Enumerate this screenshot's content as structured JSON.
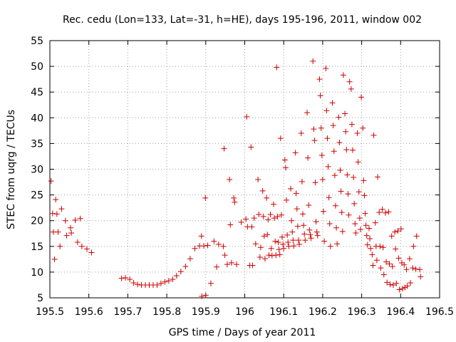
{
  "chart_data": {
    "type": "scatter",
    "title": "Rec. cedu (Lon=133, Lat=-31, h=HE), days 195-196, 2011, window 002",
    "xlabel": "GPS time / Days of year 2011",
    "ylabel": "STEC from uqrg / TECUs",
    "xlim": [
      195.5,
      196.5
    ],
    "ylim": [
      5,
      55
    ],
    "grid": true,
    "marker": "+",
    "colors": {
      "marker": "#cc0000",
      "grid": "#a0a0a0",
      "axis": "#000000"
    },
    "xticks": [
      "195.5",
      "195.6",
      "195.7",
      "195.8",
      "195.9",
      "196",
      "196.1",
      "196.2",
      "196.3",
      "196.4",
      "196.5"
    ],
    "yticks": [
      "5",
      "10",
      "15",
      "20",
      "25",
      "30",
      "35",
      "40",
      "45",
      "50",
      "55"
    ],
    "points": [
      [
        195.503,
        27.7
      ],
      [
        195.507,
        21.4
      ],
      [
        195.509,
        17.8
      ],
      [
        195.512,
        12.5
      ],
      [
        195.515,
        24.1
      ],
      [
        195.518,
        21.3
      ],
      [
        195.521,
        17.8
      ],
      [
        195.526,
        15.0
      ],
      [
        195.53,
        22.3
      ],
      [
        195.54,
        20.0
      ],
      [
        195.543,
        17.1
      ],
      [
        195.553,
        18.6
      ],
      [
        195.555,
        17.6
      ],
      [
        195.565,
        20.1
      ],
      [
        195.571,
        15.8
      ],
      [
        195.578,
        20.4
      ],
      [
        195.582,
        15.0
      ],
      [
        195.595,
        14.5
      ],
      [
        195.607,
        13.8
      ],
      [
        195.684,
        8.8
      ],
      [
        195.694,
        8.9
      ],
      [
        195.705,
        8.6
      ],
      [
        195.715,
        7.9
      ],
      [
        195.725,
        7.6
      ],
      [
        195.735,
        7.5
      ],
      [
        195.745,
        7.5
      ],
      [
        195.755,
        7.5
      ],
      [
        195.765,
        7.5
      ],
      [
        195.775,
        7.5
      ],
      [
        195.785,
        7.8
      ],
      [
        195.795,
        8.1
      ],
      [
        195.805,
        8.3
      ],
      [
        195.815,
        8.6
      ],
      [
        195.825,
        9.3
      ],
      [
        195.836,
        10.1
      ],
      [
        195.848,
        11.1
      ],
      [
        195.86,
        12.6
      ],
      [
        195.872,
        14.6
      ],
      [
        195.884,
        15.1
      ],
      [
        195.889,
        17.0
      ],
      [
        195.89,
        5.3
      ],
      [
        195.895,
        15.1
      ],
      [
        195.899,
        24.4
      ],
      [
        195.9,
        5.5
      ],
      [
        195.905,
        15.2
      ],
      [
        195.913,
        7.8
      ],
      [
        195.921,
        16.0
      ],
      [
        195.928,
        11.0
      ],
      [
        195.933,
        15.4
      ],
      [
        195.945,
        15.0
      ],
      [
        195.947,
        34.0
      ],
      [
        195.949,
        13.3
      ],
      [
        195.955,
        11.5
      ],
      [
        195.961,
        28.0
      ],
      [
        195.963,
        19.2
      ],
      [
        195.966,
        11.8
      ],
      [
        195.972,
        24.4
      ],
      [
        195.974,
        23.6
      ],
      [
        195.979,
        11.5
      ],
      [
        195.991,
        19.7
      ],
      [
        196.003,
        20.3
      ],
      [
        196.005,
        40.2
      ],
      [
        196.007,
        18.8
      ],
      [
        196.013,
        11.3
      ],
      [
        196.016,
        34.3
      ],
      [
        196.018,
        18.8
      ],
      [
        196.02,
        11.3
      ],
      [
        196.024,
        20.5
      ],
      [
        196.028,
        15.5
      ],
      [
        196.034,
        28.0
      ],
      [
        196.036,
        21.2
      ],
      [
        196.039,
        12.9
      ],
      [
        196.041,
        14.8
      ],
      [
        196.046,
        25.8
      ],
      [
        196.048,
        20.8
      ],
      [
        196.05,
        17.0
      ],
      [
        196.052,
        12.6
      ],
      [
        196.056,
        24.4
      ],
      [
        196.058,
        17.3
      ],
      [
        196.06,
        20.2
      ],
      [
        196.062,
        13.3
      ],
      [
        196.066,
        21.2
      ],
      [
        196.068,
        14.6
      ],
      [
        196.07,
        13.2
      ],
      [
        196.074,
        23.2
      ],
      [
        196.076,
        20.5
      ],
      [
        196.078,
        16.0
      ],
      [
        196.08,
        13.3
      ],
      [
        196.082,
        49.8
      ],
      [
        196.084,
        20.8
      ],
      [
        196.086,
        15.8
      ],
      [
        196.088,
        14.4
      ],
      [
        196.09,
        13.4
      ],
      [
        196.092,
        36.0
      ],
      [
        196.094,
        21.1
      ],
      [
        196.096,
        16.8
      ],
      [
        196.098,
        15.4
      ],
      [
        196.1,
        14.6
      ],
      [
        196.103,
        31.8
      ],
      [
        196.105,
        30.3
      ],
      [
        196.107,
        24.0
      ],
      [
        196.109,
        17.2
      ],
      [
        196.111,
        15.8
      ],
      [
        196.113,
        15.0
      ],
      [
        196.118,
        26.2
      ],
      [
        196.12,
        20.0
      ],
      [
        196.122,
        17.8
      ],
      [
        196.124,
        16.2
      ],
      [
        196.126,
        15.1
      ],
      [
        196.13,
        33.2
      ],
      [
        196.132,
        25.3
      ],
      [
        196.134,
        22.3
      ],
      [
        196.136,
        18.9
      ],
      [
        196.138,
        16.2
      ],
      [
        196.14,
        15.4
      ],
      [
        196.145,
        37.0
      ],
      [
        196.147,
        27.6
      ],
      [
        196.149,
        21.3
      ],
      [
        196.151,
        19.1
      ],
      [
        196.153,
        17.4
      ],
      [
        196.155,
        16.2
      ],
      [
        196.16,
        41.0
      ],
      [
        196.162,
        32.2
      ],
      [
        196.164,
        23.0
      ],
      [
        196.166,
        18.2
      ],
      [
        196.168,
        17.3
      ],
      [
        196.17,
        16.6
      ],
      [
        196.175,
        51.0
      ],
      [
        196.177,
        37.8
      ],
      [
        196.179,
        35.6
      ],
      [
        196.181,
        27.4
      ],
      [
        196.183,
        19.8
      ],
      [
        196.185,
        17.8
      ],
      [
        196.187,
        17.1
      ],
      [
        196.192,
        47.5
      ],
      [
        196.194,
        44.3
      ],
      [
        196.196,
        38.0
      ],
      [
        196.198,
        32.7
      ],
      [
        196.2,
        28.0
      ],
      [
        196.202,
        21.8
      ],
      [
        196.204,
        16.0
      ],
      [
        196.208,
        49.6
      ],
      [
        196.21,
        41.4
      ],
      [
        196.212,
        36.0
      ],
      [
        196.214,
        30.5
      ],
      [
        196.216,
        24.5
      ],
      [
        196.218,
        19.4
      ],
      [
        196.22,
        15.0
      ],
      [
        196.225,
        42.9
      ],
      [
        196.227,
        38.5
      ],
      [
        196.229,
        33.5
      ],
      [
        196.231,
        28.8
      ],
      [
        196.233,
        22.9
      ],
      [
        196.235,
        18.6
      ],
      [
        196.237,
        15.5
      ],
      [
        196.241,
        40.1
      ],
      [
        196.243,
        35.2
      ],
      [
        196.245,
        29.8
      ],
      [
        196.247,
        25.7
      ],
      [
        196.249,
        21.6
      ],
      [
        196.251,
        17.9
      ],
      [
        196.253,
        48.3
      ],
      [
        196.257,
        40.8
      ],
      [
        196.259,
        37.3
      ],
      [
        196.261,
        33.8
      ],
      [
        196.263,
        28.9
      ],
      [
        196.265,
        25.2
      ],
      [
        196.267,
        21.1
      ],
      [
        196.269,
        47.0
      ],
      [
        196.273,
        45.6
      ],
      [
        196.275,
        38.7
      ],
      [
        196.277,
        33.7
      ],
      [
        196.279,
        28.4
      ],
      [
        196.281,
        23.3
      ],
      [
        196.283,
        19.4
      ],
      [
        196.285,
        17.6
      ],
      [
        196.289,
        37.0
      ],
      [
        196.291,
        31.4
      ],
      [
        196.293,
        25.6
      ],
      [
        196.295,
        20.5
      ],
      [
        196.297,
        18.3
      ],
      [
        196.299,
        44.0
      ],
      [
        196.303,
        38.0
      ],
      [
        196.305,
        27.8
      ],
      [
        196.307,
        24.9
      ],
      [
        196.309,
        21.4
      ],
      [
        196.311,
        19.1
      ],
      [
        196.313,
        17.1
      ],
      [
        196.315,
        15.3
      ],
      [
        196.319,
        18.5
      ],
      [
        196.321,
        16.5
      ],
      [
        196.323,
        14.6
      ],
      [
        196.327,
        13.4
      ],
      [
        196.329,
        11.3
      ],
      [
        196.331,
        36.6
      ],
      [
        196.335,
        19.6
      ],
      [
        196.337,
        15.0
      ],
      [
        196.339,
        12.3
      ],
      [
        196.341,
        28.5
      ],
      [
        196.345,
        21.6
      ],
      [
        196.347,
        15.0
      ],
      [
        196.349,
        10.8
      ],
      [
        196.353,
        22.2
      ],
      [
        196.355,
        14.8
      ],
      [
        196.357,
        9.5
      ],
      [
        196.361,
        21.5
      ],
      [
        196.363,
        12.0
      ],
      [
        196.365,
        8.0
      ],
      [
        196.369,
        21.7
      ],
      [
        196.371,
        11.6
      ],
      [
        196.373,
        7.6
      ],
      [
        196.377,
        17.0
      ],
      [
        196.379,
        11.1
      ],
      [
        196.381,
        7.5
      ],
      [
        196.385,
        17.8
      ],
      [
        196.387,
        14.5
      ],
      [
        196.389,
        7.8
      ],
      [
        196.393,
        18.0
      ],
      [
        196.395,
        12.7
      ],
      [
        196.397,
        6.6
      ],
      [
        196.401,
        18.4
      ],
      [
        196.403,
        11.8
      ],
      [
        196.405,
        6.8
      ],
      [
        196.409,
        11.4
      ],
      [
        196.411,
        7.0
      ],
      [
        196.415,
        10.5
      ],
      [
        196.417,
        7.3
      ],
      [
        196.423,
        12.6
      ],
      [
        196.425,
        7.9
      ],
      [
        196.431,
        10.8
      ],
      [
        196.433,
        15.0
      ],
      [
        196.439,
        10.6
      ],
      [
        196.441,
        17.0
      ],
      [
        196.449,
        10.5
      ],
      [
        196.451,
        9.1
      ]
    ]
  }
}
